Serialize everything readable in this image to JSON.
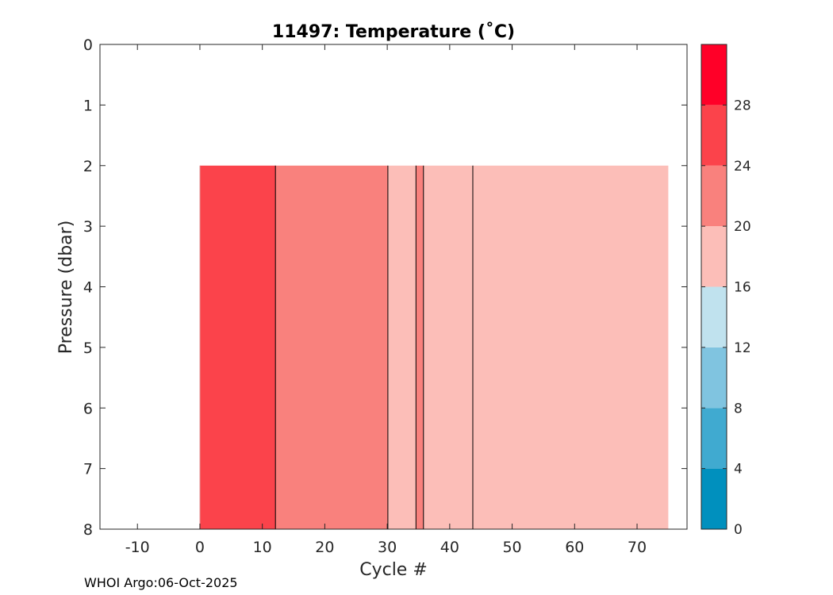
{
  "chart_data": {
    "type": "heatmap",
    "title": "11497:  Temperature (˚C)",
    "xlabel": "Cycle #",
    "ylabel": "Pressure (dbar)",
    "xlim": [
      -16,
      78
    ],
    "ylim": [
      0,
      8
    ],
    "y_reversed": true,
    "x_ticks": [
      -10,
      0,
      10,
      20,
      30,
      40,
      50,
      60,
      70
    ],
    "y_ticks": [
      0,
      1,
      2,
      3,
      4,
      5,
      6,
      7,
      8
    ],
    "data_pressure_range": [
      2,
      8
    ],
    "segments": [
      {
        "x_start": 0,
        "x_end": 12.1,
        "temperature_band": [
          24,
          28
        ],
        "color": "#fb434b"
      },
      {
        "x_start": 12.1,
        "x_end": 30.1,
        "temperature_band": [
          20,
          24
        ],
        "color": "#f9817d"
      },
      {
        "x_start": 30.1,
        "x_end": 34.6,
        "temperature_band": [
          16,
          20
        ],
        "color": "#fcbeb8"
      },
      {
        "x_start": 34.6,
        "x_end": 35.8,
        "temperature_band": [
          20,
          24
        ],
        "color": "#f9817d"
      },
      {
        "x_start": 35.8,
        "x_end": 43.7,
        "temperature_band": [
          16,
          20
        ],
        "color": "#fcbeb8"
      },
      {
        "x_start": 43.7,
        "x_end": 75,
        "temperature_band": [
          16,
          20
        ],
        "color": "#fcbeb8"
      }
    ],
    "colorbar": {
      "ticks": [
        0,
        4,
        8,
        12,
        16,
        20,
        24,
        28
      ],
      "range": [
        0,
        32
      ],
      "bands": [
        {
          "from": 0,
          "to": 4,
          "color": "#0090be"
        },
        {
          "from": 4,
          "to": 8,
          "color": "#40aad0"
        },
        {
          "from": 8,
          "to": 12,
          "color": "#80c4e0"
        },
        {
          "from": 12,
          "to": 16,
          "color": "#c0e2ee"
        },
        {
          "from": 16,
          "to": 20,
          "color": "#fcbeb8"
        },
        {
          "from": 20,
          "to": 24,
          "color": "#f9817d"
        },
        {
          "from": 24,
          "to": 28,
          "color": "#fb434b"
        },
        {
          "from": 28,
          "to": 32,
          "color": "#ff0028"
        }
      ]
    }
  },
  "footer": "WHOI Argo:06-Oct-2025"
}
